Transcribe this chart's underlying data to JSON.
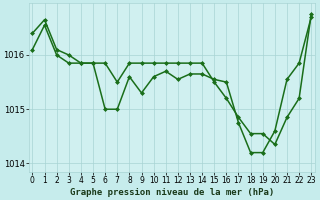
{
  "line1_x": [
    0,
    1,
    2,
    3,
    4,
    5,
    6,
    7,
    8,
    9,
    10,
    11,
    12,
    13,
    14,
    15,
    16,
    17,
    18,
    19,
    20,
    21,
    22,
    23
  ],
  "line1_y": [
    1016.1,
    1016.55,
    1016.0,
    1015.85,
    1015.85,
    1015.85,
    1015.0,
    1015.0,
    1015.6,
    1015.3,
    1015.6,
    1015.7,
    1015.55,
    1015.65,
    1015.65,
    1015.55,
    1015.5,
    1014.75,
    1014.2,
    1014.2,
    1014.6,
    1015.55,
    1015.85,
    1016.7
  ],
  "line2_x": [
    0,
    1,
    2,
    3,
    4,
    5,
    6,
    7,
    8,
    9,
    10,
    11,
    12,
    13,
    14,
    15,
    16,
    17,
    18,
    19,
    20,
    21,
    22,
    23
  ],
  "line2_y": [
    1016.4,
    1016.65,
    1016.1,
    1016.0,
    1015.85,
    1015.85,
    1015.85,
    1015.5,
    1015.85,
    1015.85,
    1015.85,
    1015.85,
    1015.85,
    1015.85,
    1015.85,
    1015.5,
    1015.2,
    1014.85,
    1014.55,
    1014.55,
    1014.35,
    1014.85,
    1015.2,
    1016.75
  ],
  "line_color": "#1a6e1a",
  "bg_color": "#c6ecec",
  "plot_bg_color": "#d0f0f0",
  "grid_color": "#a8d4d4",
  "xlabel": "Graphe pression niveau de la mer (hPa)",
  "ylim": [
    1013.85,
    1016.95
  ],
  "yticks": [
    1014,
    1015,
    1016
  ],
  "xticks": [
    0,
    1,
    2,
    3,
    4,
    5,
    6,
    7,
    8,
    9,
    10,
    11,
    12,
    13,
    14,
    15,
    16,
    17,
    18,
    19,
    20,
    21,
    22,
    23
  ],
  "xlim": [
    -0.3,
    23.3
  ],
  "xlabel_fontsize": 6.5,
  "tick_fontsize": 5.5,
  "linewidth": 1.1,
  "marker": "D",
  "markersize": 2.0
}
